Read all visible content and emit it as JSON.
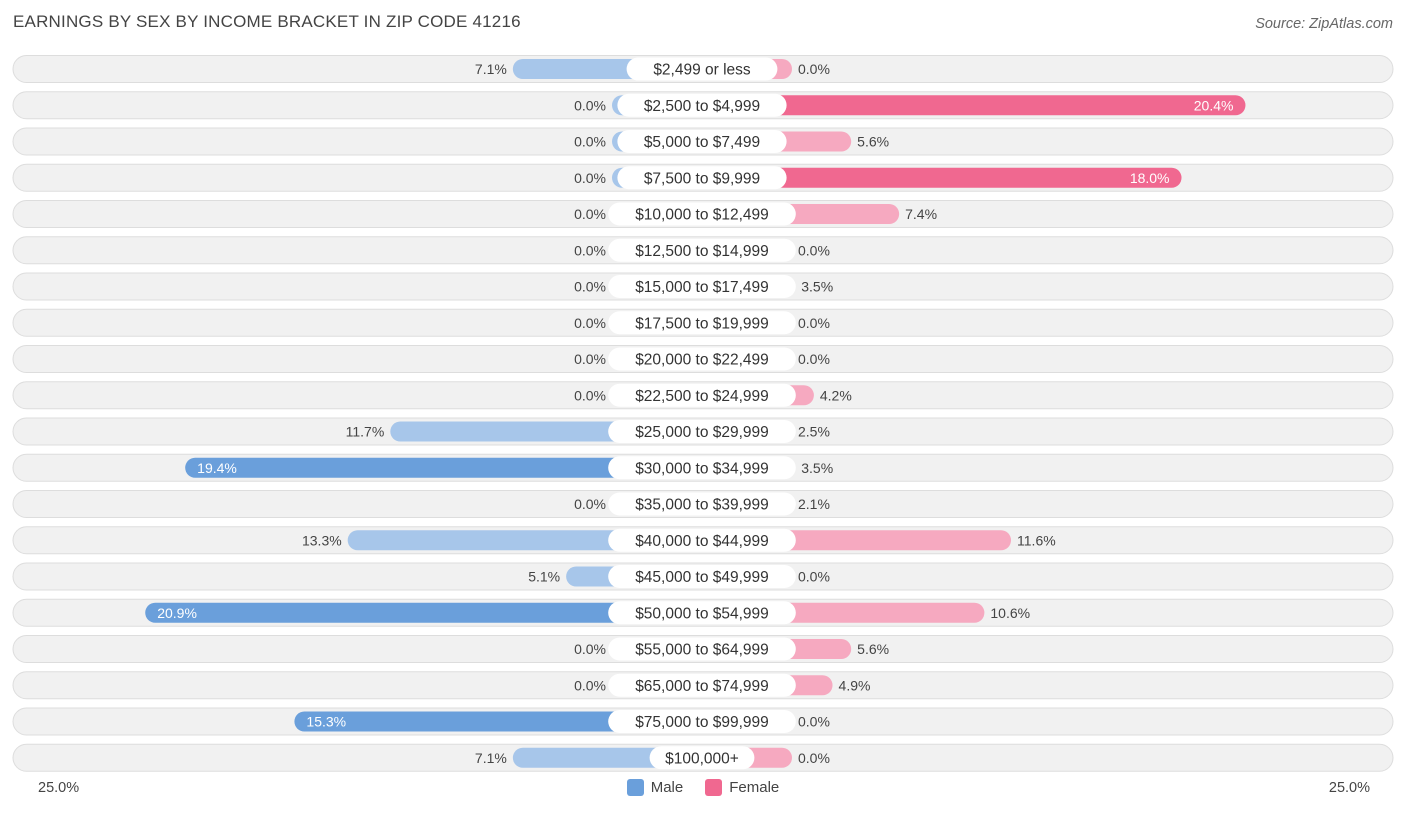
{
  "header": {
    "title": "EARNINGS BY SEX BY INCOME BRACKET IN ZIP CODE 41216",
    "source": "Source: ZipAtlas.com"
  },
  "axis": {
    "left_label": "25.0%",
    "right_label": "25.0%"
  },
  "legend": {
    "male": "Male",
    "female": "Female"
  },
  "colors": {
    "male_strong": "#6a9fdb",
    "male_light": "#a7c6ea",
    "female_strong": "#f06890",
    "female_light": "#f6a9c0",
    "row_bg": "#f1f1f1",
    "row_border": "#dddddd"
  },
  "chart_data": {
    "type": "bar",
    "orientation": "horizontal-diverging",
    "title": "EARNINGS BY SEX BY INCOME BRACKET IN ZIP CODE 41216",
    "xlim": [
      -25,
      25
    ],
    "unit": "%",
    "categories": [
      "$2,499 or less",
      "$2,500 to $4,999",
      "$5,000 to $7,499",
      "$7,500 to $9,999",
      "$10,000 to $12,499",
      "$12,500 to $14,999",
      "$15,000 to $17,499",
      "$17,500 to $19,999",
      "$20,000 to $22,499",
      "$22,500 to $24,999",
      "$25,000 to $29,999",
      "$30,000 to $34,999",
      "$35,000 to $39,999",
      "$40,000 to $44,999",
      "$45,000 to $49,999",
      "$50,000 to $54,999",
      "$55,000 to $64,999",
      "$65,000 to $74,999",
      "$75,000 to $99,999",
      "$100,000+"
    ],
    "series": [
      {
        "name": "Male",
        "values": [
          7.1,
          0.0,
          0.0,
          0.0,
          0.0,
          0.0,
          0.0,
          0.0,
          0.0,
          0.0,
          11.7,
          19.4,
          0.0,
          13.3,
          5.1,
          20.9,
          0.0,
          0.0,
          15.3,
          7.1
        ],
        "labels": [
          "7.1%",
          "0.0%",
          "0.0%",
          "0.0%",
          "0.0%",
          "0.0%",
          "0.0%",
          "0.0%",
          "0.0%",
          "0.0%",
          "11.7%",
          "19.4%",
          "0.0%",
          "13.3%",
          "5.1%",
          "20.9%",
          "0.0%",
          "0.0%",
          "15.3%",
          "7.1%"
        ]
      },
      {
        "name": "Female",
        "values": [
          0.0,
          20.4,
          5.6,
          18.0,
          7.4,
          0.0,
          3.5,
          0.0,
          0.0,
          4.2,
          2.5,
          3.5,
          2.1,
          11.6,
          0.0,
          10.6,
          5.6,
          4.9,
          0.0,
          0.0
        ],
        "labels": [
          "0.0%",
          "20.4%",
          "5.6%",
          "18.0%",
          "7.4%",
          "0.0%",
          "3.5%",
          "0.0%",
          "0.0%",
          "4.2%",
          "2.5%",
          "3.5%",
          "2.1%",
          "11.6%",
          "0.0%",
          "10.6%",
          "5.6%",
          "4.9%",
          "0.0%",
          "0.0%"
        ]
      }
    ]
  }
}
